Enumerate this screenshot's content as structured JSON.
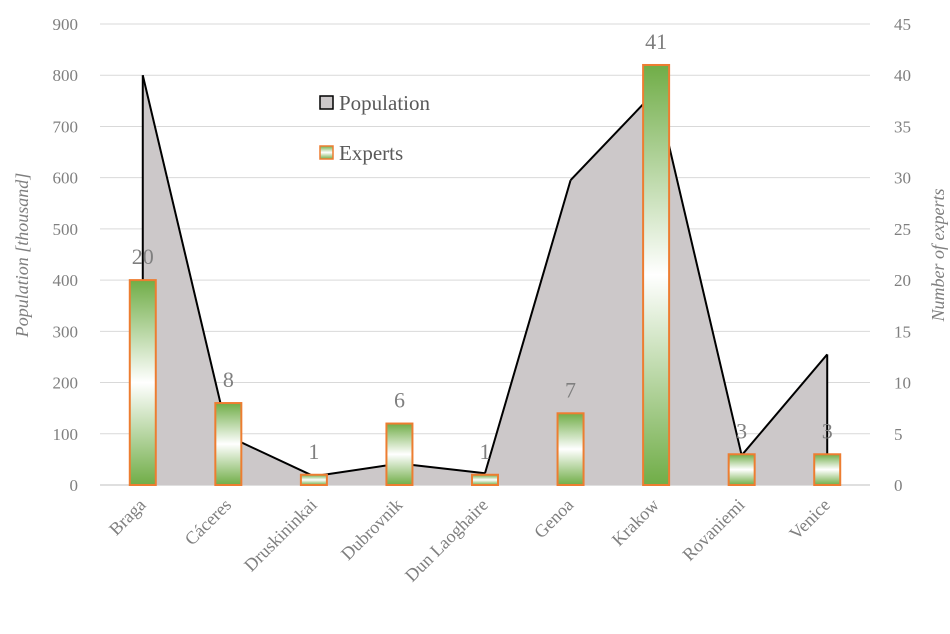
{
  "chart_data": {
    "type": "bar",
    "categories": [
      "Braga",
      "Cáceres",
      "Druskininkai",
      "Dubrovnik",
      "Dun Laoghaire",
      "Genoa",
      "Krakow",
      "Rovaniemi",
      "Venice"
    ],
    "series": [
      {
        "name": "Population",
        "type": "area",
        "axis": "left",
        "values": [
          800,
          95,
          17,
          42,
          23,
          595,
          770,
          58,
          255
        ],
        "fill": "#ccc8c9",
        "stroke": "#000000"
      },
      {
        "name": "Experts",
        "type": "bar",
        "axis": "right",
        "values": [
          20,
          8,
          1,
          6,
          1,
          7,
          41,
          3,
          3
        ],
        "labels": [
          "20",
          "8",
          "1",
          "6",
          "1",
          "7",
          "41",
          "3",
          "3"
        ],
        "fill_edge": "#70ad47",
        "fill_center": "#ffffff",
        "stroke": "#ed7d31"
      }
    ],
    "ylabel": "Population [thousand]",
    "y2label": "Number of experts",
    "ylim": [
      0,
      900
    ],
    "y2lim": [
      0,
      45
    ],
    "yticks": [
      "0",
      "100",
      "200",
      "300",
      "400",
      "500",
      "600",
      "700",
      "800",
      "900"
    ],
    "y2ticks": [
      "0",
      "5",
      "10",
      "15",
      "20",
      "25",
      "30",
      "35",
      "40",
      "45"
    ],
    "grid": true,
    "legend": {
      "placement": "top-center",
      "entries": [
        "Population",
        "Experts"
      ]
    }
  }
}
